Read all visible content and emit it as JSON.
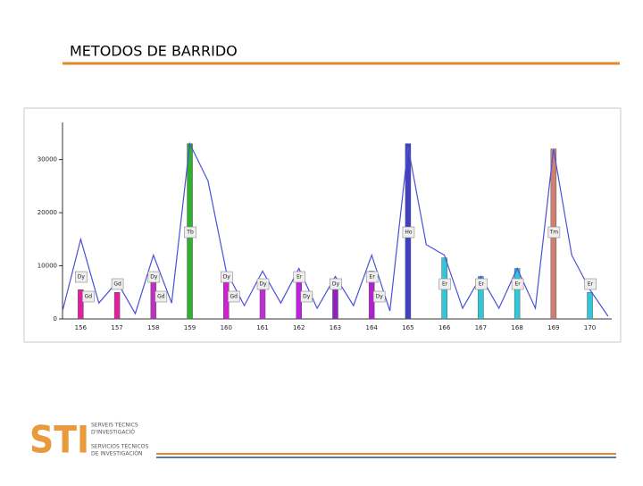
{
  "header": {
    "title": "METODOS DE BARRIDO"
  },
  "logo": {
    "mark": "STI",
    "line1": "SERVEIS TÈCNICS",
    "line2": "D'INVESTIGACIÓ",
    "line3": "SERVICIOS TÉCNICOS",
    "line4": "DE INVESTIGACIÓN"
  },
  "chart_data": {
    "type": "bar",
    "categories": [
      156,
      157,
      158,
      159,
      160,
      161,
      162,
      163,
      164,
      165,
      166,
      167,
      168,
      169,
      170
    ],
    "values": [
      5500,
      5000,
      8000,
      33000,
      7500,
      5500,
      8000,
      7500,
      9000,
      33000,
      11500,
      8000,
      9500,
      32000,
      5000
    ],
    "colors": [
      "#e020a0",
      "#e020a0",
      "#c030c0",
      "#30b030",
      "#d020d0",
      "#c030d0",
      "#c020e0",
      "#9020c0",
      "#b020d0",
      "#4040c0",
      "#30c8d8",
      "#30c8d8",
      "#30c8d8",
      "#d08070",
      "#30c8d8"
    ],
    "peak_labels": [
      [
        "Dy",
        "Gd"
      ],
      [
        "Gd"
      ],
      [
        "Dy",
        "Gd"
      ],
      [
        "Tb"
      ],
      [
        "Dy",
        "Gd"
      ],
      [
        "Dy"
      ],
      [
        "Er",
        "Dy"
      ],
      [
        "Dy"
      ],
      [
        "Er",
        "Dy"
      ],
      [
        "Ho"
      ],
      [
        "Er"
      ],
      [
        "Er"
      ],
      [
        "Er"
      ],
      [
        "Tm"
      ],
      [
        "Er"
      ]
    ],
    "profile": {
      "color": "#4a50d8",
      "x": [
        155.5,
        156,
        156.5,
        157,
        157.5,
        158,
        158.5,
        159,
        159.5,
        160,
        160.5,
        161,
        161.5,
        162,
        162.5,
        163,
        163.5,
        164,
        164.5,
        165,
        165.5,
        166,
        166.5,
        167,
        167.5,
        168,
        168.5,
        169,
        169.5,
        170,
        170.5
      ],
      "values": [
        1500,
        15000,
        3000,
        7000,
        1000,
        12000,
        3000,
        33000,
        26000,
        9000,
        2500,
        9000,
        3000,
        9500,
        2000,
        8000,
        2500,
        12000,
        1500,
        32500,
        14000,
        12000,
        2000,
        8000,
        2000,
        9500,
        2000,
        32000,
        12000,
        5500,
        500
      ]
    },
    "xlim": [
      155.5,
      170.6
    ],
    "ylim": [
      0,
      37000
    ],
    "yticks": [
      0,
      10000,
      20000,
      30000
    ]
  }
}
